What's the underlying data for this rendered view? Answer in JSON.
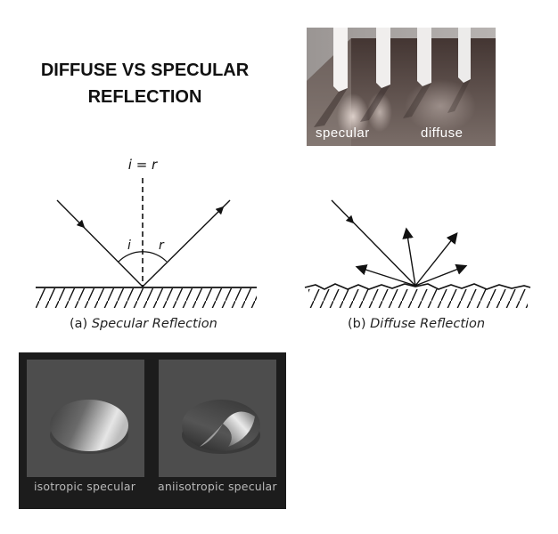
{
  "title": {
    "line1": "DIFFUSE VS SPECULAR",
    "line2": "REFLECTION"
  },
  "photo": {
    "left_label": "specular",
    "right_label": "diffuse"
  },
  "specular_diagram": {
    "equation": "i = r",
    "angle_incident": "i",
    "angle_reflected": "r",
    "caption_prefix": "(a) ",
    "caption_text": "Specular Reflection"
  },
  "diffuse_diagram": {
    "caption_prefix": "(b) ",
    "caption_text": "Diffuse Reflection"
  },
  "render_panel": {
    "left_label": "isotropic specular",
    "right_label": "aniisotropic specular"
  }
}
